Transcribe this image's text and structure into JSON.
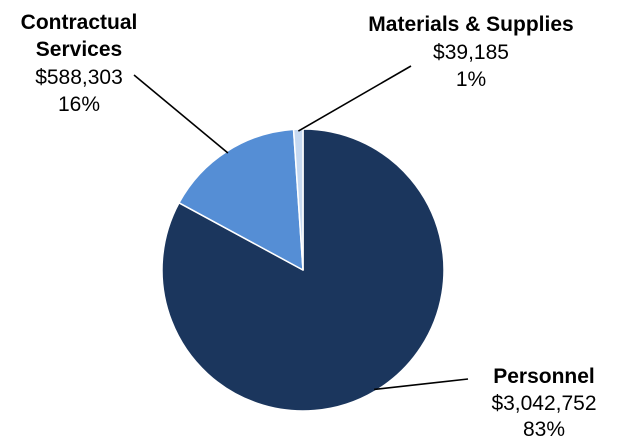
{
  "chart_data": {
    "type": "pie",
    "title": "",
    "slices": [
      {
        "name": "Personnel",
        "label_lines": [
          "Personnel"
        ],
        "amount": "$3,042,752",
        "percent_label": "83%",
        "value": 3042752,
        "color": "#1b365d"
      },
      {
        "name": "Contractual Services",
        "label_lines": [
          "Contractual",
          "Services"
        ],
        "amount": "$588,303",
        "percent_label": "16%",
        "value": 588303,
        "color": "#558ed5"
      },
      {
        "name": "Materials & Supplies",
        "label_lines": [
          "Materials & Supplies"
        ],
        "amount": "$39,185",
        "percent_label": "1%",
        "value": 39185,
        "color": "#c6d9f1"
      }
    ],
    "start_angle": "12 o'clock",
    "direction": "clockwise",
    "legend": "none",
    "data_labels": "outside with leader lines"
  }
}
